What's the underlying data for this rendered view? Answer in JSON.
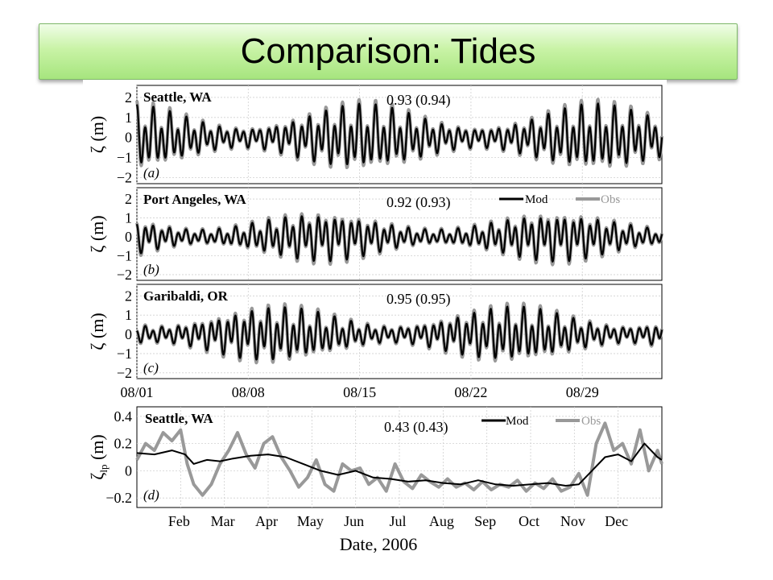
{
  "slide": {
    "title": "Comparison: Tides"
  },
  "colors": {
    "model": "#000000",
    "observed": "#999999",
    "title_bg_top": "#f0fde8",
    "title_bg_bottom": "#a6e57e"
  },
  "chart_data": [
    {
      "type": "line",
      "panel": "(a)",
      "station": "Seattle, WA",
      "skill": "0.93 (0.94)",
      "ylabel": "ζ (m)",
      "ylim": [
        -2.3,
        2.6
      ],
      "yticks": [
        2,
        1,
        0,
        -1,
        -2
      ],
      "ytick_labels": [
        "2",
        "1",
        "0",
        "−1",
        "−2"
      ],
      "xlim": [
        "2006-08-01",
        "2006-09-03"
      ],
      "amplitude": 1.55,
      "series": [
        {
          "name": "Mod"
        },
        {
          "name": "Obs"
        }
      ]
    },
    {
      "type": "line",
      "panel": "(b)",
      "station": "Port Angeles, WA",
      "skill": "0.92 (0.93)",
      "ylabel": "ζ (m)",
      "ylim": [
        -2.3,
        2.6
      ],
      "yticks": [
        2,
        1,
        0,
        -1,
        -2
      ],
      "ytick_labels": [
        "2",
        "1",
        "0",
        "−1",
        "−2"
      ],
      "xlim": [
        "2006-08-01",
        "2006-09-03"
      ],
      "amplitude": 1.2,
      "legend": [
        "Mod",
        "Obs"
      ],
      "series": [
        {
          "name": "Mod"
        },
        {
          "name": "Obs"
        }
      ]
    },
    {
      "type": "line",
      "panel": "(c)",
      "station": "Garibaldi, OR",
      "skill": "0.95 (0.95)",
      "ylabel": "ζ (m)",
      "ylim": [
        -2.3,
        2.6
      ],
      "yticks": [
        2,
        1,
        0,
        -1,
        -2
      ],
      "ytick_labels": [
        "2",
        "1",
        "0",
        "−1",
        "−2"
      ],
      "xlim": [
        "2006-08-01",
        "2006-09-03"
      ],
      "xtick_labels": [
        "08/01",
        "08/08",
        "08/15",
        "08/22",
        "08/29"
      ],
      "amplitude": 1.35,
      "series": [
        {
          "name": "Mod"
        },
        {
          "name": "Obs"
        }
      ]
    },
    {
      "type": "line",
      "panel": "(d)",
      "station": "Seattle, WA",
      "skill": "0.43 (0.43)",
      "ylabel": "ζ",
      "ylabel_sub": "lp",
      "ylabel_unit": "(m)",
      "ylim": [
        -0.27,
        0.47
      ],
      "yticks": [
        0.4,
        0.2,
        0,
        -0.2
      ],
      "ytick_labels": [
        "0.4",
        "0.2",
        "0",
        "−0.2"
      ],
      "xlabel": "Date, 2006",
      "xtick_labels": [
        "Feb",
        "Mar",
        "Apr",
        "May",
        "Jun",
        "Jul",
        "Aug",
        "Sep",
        "Oct",
        "Nov",
        "Dec"
      ],
      "legend": [
        "Mod",
        "Obs"
      ],
      "series": [
        {
          "name": "Mod",
          "x": [
            0,
            0.4,
            0.8,
            1.1,
            1.3,
            1.6,
            1.9,
            2.2,
            2.6,
            3.0,
            3.4,
            3.8,
            4.2,
            4.6,
            5.0,
            5.4,
            5.8,
            6.2,
            6.6,
            7.0,
            7.4,
            7.8,
            8.2,
            8.6,
            9.0,
            9.4,
            9.8,
            10.1,
            10.4,
            10.7,
            11.0,
            11.3,
            11.6,
            11.9,
            12.0
          ],
          "y": [
            0.13,
            0.12,
            0.15,
            0.12,
            0.05,
            0.08,
            0.07,
            0.09,
            0.11,
            0.12,
            0.1,
            0.05,
            0.0,
            -0.03,
            0.0,
            -0.05,
            -0.06,
            -0.08,
            -0.07,
            -0.09,
            -0.1,
            -0.07,
            -0.1,
            -0.11,
            -0.1,
            -0.09,
            -0.11,
            -0.1,
            0.0,
            0.1,
            0.12,
            0.07,
            0.2,
            0.1,
            0.08
          ]
        },
        {
          "name": "Obs",
          "x": [
            0,
            0.2,
            0.4,
            0.6,
            0.8,
            1.0,
            1.15,
            1.3,
            1.5,
            1.7,
            1.9,
            2.1,
            2.3,
            2.5,
            2.7,
            2.9,
            3.1,
            3.3,
            3.5,
            3.7,
            3.9,
            4.1,
            4.3,
            4.5,
            4.7,
            4.9,
            5.1,
            5.3,
            5.5,
            5.7,
            5.9,
            6.1,
            6.3,
            6.5,
            6.7,
            6.9,
            7.1,
            7.3,
            7.5,
            7.7,
            7.9,
            8.1,
            8.3,
            8.5,
            8.7,
            8.9,
            9.1,
            9.3,
            9.5,
            9.7,
            9.9,
            10.1,
            10.3,
            10.5,
            10.7,
            10.9,
            11.1,
            11.3,
            11.5,
            11.7,
            11.9,
            12.0
          ],
          "y": [
            0.08,
            0.2,
            0.15,
            0.28,
            0.22,
            0.3,
            0.05,
            -0.1,
            -0.18,
            -0.1,
            0.05,
            0.15,
            0.28,
            0.12,
            0.02,
            0.2,
            0.25,
            0.1,
            0.0,
            -0.12,
            -0.05,
            0.08,
            -0.1,
            -0.15,
            0.05,
            0.0,
            0.02,
            -0.1,
            -0.05,
            -0.15,
            0.05,
            -0.08,
            -0.13,
            -0.03,
            -0.08,
            -0.12,
            -0.06,
            -0.12,
            -0.09,
            -0.14,
            -0.08,
            -0.14,
            -0.1,
            -0.12,
            -0.07,
            -0.15,
            -0.09,
            -0.13,
            -0.06,
            -0.15,
            -0.12,
            -0.02,
            -0.18,
            0.2,
            0.35,
            0.15,
            0.2,
            0.05,
            0.3,
            0.0,
            0.15,
            0.05
          ]
        }
      ]
    }
  ]
}
